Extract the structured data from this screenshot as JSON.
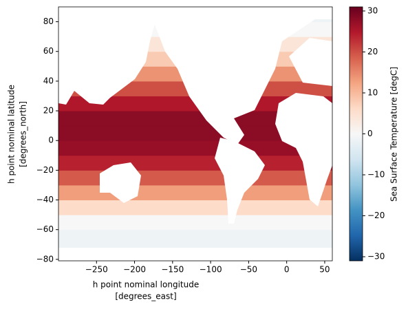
{
  "chart_data": {
    "type": "zonal-heatmap",
    "xlabel": [
      "h point nominal longitude",
      "[degrees_east]"
    ],
    "ylabel": [
      "h point nominal latitude",
      "[degrees_north]"
    ],
    "colorbar_label": "Sea Surface Temperature [degC]",
    "xlim": [
      -300,
      60
    ],
    "ylim": [
      -81,
      90
    ],
    "xticks": [
      {
        "value": -250,
        "label": "−250"
      },
      {
        "value": -200,
        "label": "−200"
      },
      {
        "value": -150,
        "label": "−150"
      },
      {
        "value": -100,
        "label": "−100"
      },
      {
        "value": -50,
        "label": "−50"
      },
      0,
      50
    ],
    "yticks": [
      {
        "value": -80,
        "label": "−80"
      },
      {
        "value": -60,
        "label": "−60"
      },
      {
        "value": -40,
        "label": "−40"
      },
      {
        "value": -20,
        "label": "−20"
      },
      0,
      20,
      40,
      60,
      80
    ],
    "clim": [
      -31,
      31
    ],
    "cticks": [
      {
        "value": -30,
        "label": "−30"
      },
      {
        "value": -20,
        "label": "−20"
      },
      {
        "value": -10,
        "label": "−10"
      },
      0,
      10,
      20,
      30
    ],
    "colormap": [
      "#053061",
      "#2166ac",
      "#4393c3",
      "#92c5de",
      "#d1e5f0",
      "#f7f7f7",
      "#fddbc7",
      "#f4a582",
      "#d6604d",
      "#b2182b",
      "#67001f"
    ],
    "y_bins": [
      -81,
      -70,
      -60,
      -50,
      -40,
      -30,
      -20,
      -10,
      0,
      10,
      20,
      30,
      40,
      50,
      60,
      70,
      80,
      90
    ],
    "values": [
      -1.5,
      -1.5,
      0,
      6,
      13,
      19,
      24,
      27,
      28,
      28,
      25,
      20,
      14,
      8,
      4,
      0,
      -1.5
    ]
  }
}
